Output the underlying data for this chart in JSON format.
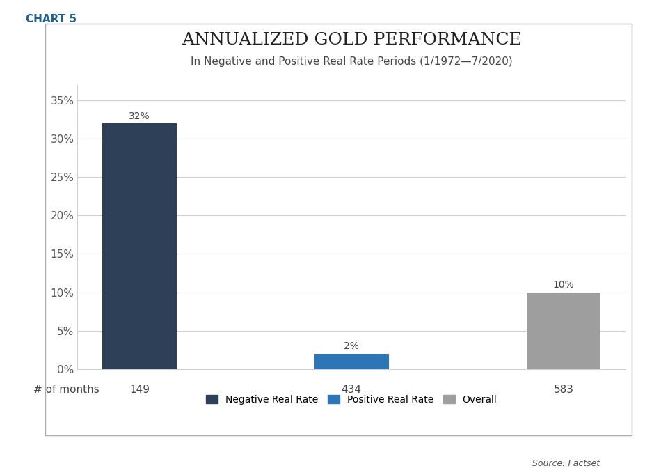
{
  "title": "ANNUALIZED GOLD PERFORMANCE",
  "subtitle": "In Negative and Positive Real Rate Periods (1/1972—7/2020)",
  "chart_label": "CHART 5",
  "categories": [
    "Negative Real Rate",
    "Positive Real Rate",
    "Overall"
  ],
  "values": [
    0.32,
    0.02,
    0.1
  ],
  "months": [
    149,
    434,
    583
  ],
  "bar_colors": [
    "#2e4057",
    "#2e75b6",
    "#9e9e9e"
  ],
  "bar_width": 0.35,
  "ylim": [
    0,
    0.37
  ],
  "yticks": [
    0.0,
    0.05,
    0.1,
    0.15,
    0.2,
    0.25,
    0.3,
    0.35
  ],
  "xlabel_months": "# of months",
  "source": "Source: Factset",
  "background_color": "#ffffff",
  "grid_color": "#d0d0d0",
  "bar_label_values": [
    "32%",
    "2%",
    "10%"
  ],
  "legend_labels": [
    "Negative Real Rate",
    "Positive Real Rate",
    "Overall"
  ],
  "title_fontsize": 18,
  "subtitle_fontsize": 11,
  "tick_fontsize": 11,
  "months_fontsize": 11,
  "bar_label_fontsize": 10,
  "chart_label_color": "#1f6091",
  "chart_label_fontsize": 11
}
